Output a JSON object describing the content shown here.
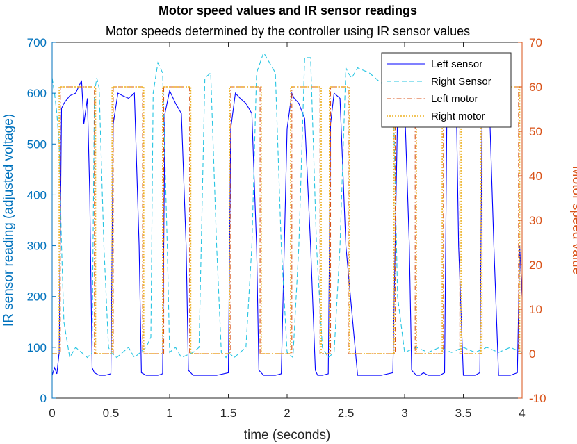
{
  "chart_data": {
    "type": "line",
    "title": "Motor speed values and IR sensor readings",
    "subtitle": "Motor speeds determined by the controller using IR sensor values",
    "xlabel": "time (seconds)",
    "ylabel_left": "IR sensor reading (adjusted voltage)",
    "ylabel_right": "Motor speed value",
    "xlim": [
      0,
      4
    ],
    "ylim_left": [
      0,
      700
    ],
    "ylim_right": [
      -10,
      70
    ],
    "x_ticks": [
      "0",
      "0.5",
      "1",
      "1.5",
      "2",
      "2.5",
      "3",
      "3.5",
      "4"
    ],
    "y_left_ticks": [
      "0",
      "100",
      "200",
      "300",
      "400",
      "500",
      "600",
      "700"
    ],
    "y_right_ticks": [
      "-10",
      "0",
      "10",
      "20",
      "30",
      "40",
      "50",
      "60",
      "70"
    ],
    "grid": false,
    "legend_position": "top-right",
    "colors": {
      "left_axis": "#0072BD",
      "right_axis": "#D95319",
      "left_sensor": "#0000FF",
      "right_sensor": "#27C5E2",
      "left_motor": "#D95319",
      "right_motor": "#EDB120"
    },
    "series": [
      {
        "name": "Left sensor",
        "axis": "left",
        "style": "solid",
        "x": [
          0,
          0.02,
          0.04,
          0.06,
          0.08,
          0.1,
          0.15,
          0.2,
          0.25,
          0.27,
          0.3,
          0.32,
          0.34,
          0.36,
          0.4,
          0.45,
          0.5,
          0.52,
          0.56,
          0.6,
          0.65,
          0.7,
          0.74,
          0.76,
          0.8,
          0.85,
          0.9,
          0.94,
          0.96,
          1.0,
          1.05,
          1.1,
          1.14,
          1.16,
          1.2,
          1.3,
          1.4,
          1.5,
          1.52,
          1.56,
          1.6,
          1.65,
          1.7,
          1.74,
          1.76,
          1.8,
          1.9,
          1.95,
          2.0,
          2.04,
          2.06,
          2.1,
          2.15,
          2.2,
          2.24,
          2.26,
          2.3,
          2.35,
          2.37,
          2.4,
          2.45,
          2.5,
          2.6,
          2.7,
          2.8,
          2.9,
          2.94,
          2.96,
          3.0,
          3.04,
          3.06,
          3.1,
          3.13,
          3.16,
          3.2,
          3.3,
          3.34,
          3.36,
          3.4,
          3.44,
          3.46,
          3.5,
          3.6,
          3.64,
          3.66,
          3.7,
          3.72,
          3.76,
          3.8,
          3.9,
          3.96,
          3.98,
          4.0
        ],
        "y": [
          45,
          60,
          48,
          90,
          570,
          580,
          595,
          600,
          625,
          540,
          590,
          400,
          60,
          50,
          45,
          45,
          48,
          540,
          600,
          595,
          590,
          600,
          300,
          50,
          45,
          45,
          45,
          48,
          560,
          605,
          580,
          560,
          300,
          55,
          45,
          45,
          45,
          50,
          530,
          600,
          590,
          580,
          560,
          300,
          55,
          45,
          45,
          48,
          530,
          600,
          590,
          580,
          550,
          300,
          55,
          45,
          45,
          48,
          540,
          600,
          590,
          300,
          45,
          45,
          45,
          50,
          560,
          600,
          580,
          300,
          55,
          45,
          45,
          50,
          45,
          45,
          50,
          560,
          600,
          580,
          300,
          45,
          45,
          50,
          560,
          600,
          590,
          300,
          45,
          45,
          50,
          300,
          200
        ]
      },
      {
        "name": "Right Sensor",
        "axis": "left",
        "style": "dashed",
        "x": [
          0,
          0.02,
          0.04,
          0.06,
          0.08,
          0.1,
          0.15,
          0.2,
          0.25,
          0.3,
          0.34,
          0.36,
          0.38,
          0.4,
          0.44,
          0.48,
          0.5,
          0.55,
          0.6,
          0.65,
          0.7,
          0.75,
          0.8,
          0.84,
          0.86,
          0.9,
          0.94,
          0.98,
          1.0,
          1.05,
          1.1,
          1.2,
          1.25,
          1.3,
          1.35,
          1.4,
          1.44,
          1.48,
          1.5,
          1.55,
          1.6,
          1.65,
          1.7,
          1.74,
          1.8,
          1.85,
          1.9,
          1.95,
          2.0,
          2.05,
          2.1,
          2.15,
          2.2,
          2.25,
          2.3,
          2.35,
          2.4,
          2.45,
          2.5,
          2.52,
          2.55,
          2.6,
          2.7,
          2.8,
          2.9,
          2.94,
          3.0,
          3.1,
          3.2,
          3.3,
          3.4,
          3.5,
          3.6,
          3.7,
          3.8,
          3.9,
          4.0
        ],
        "y": [
          630,
          600,
          560,
          500,
          300,
          150,
          80,
          100,
          90,
          80,
          90,
          600,
          630,
          610,
          300,
          100,
          90,
          80,
          90,
          100,
          80,
          90,
          100,
          120,
          600,
          660,
          640,
          300,
          90,
          100,
          80,
          90,
          100,
          630,
          640,
          300,
          90,
          80,
          90,
          80,
          90,
          100,
          300,
          640,
          680,
          660,
          640,
          300,
          90,
          80,
          300,
          670,
          670,
          300,
          100,
          80,
          90,
          300,
          650,
          640,
          630,
          650,
          640,
          620,
          640,
          200,
          90,
          100,
          90,
          100,
          90,
          100,
          90,
          100,
          90,
          100,
          90
        ]
      },
      {
        "name": "Left motor",
        "axis": "right",
        "style": "dash-dot",
        "x": [
          0,
          0.07,
          0.07,
          0.36,
          0.36,
          0.52,
          0.52,
          0.77,
          0.77,
          0.95,
          0.95,
          1.17,
          1.17,
          1.52,
          1.52,
          1.77,
          1.77,
          2.04,
          2.04,
          2.28,
          2.28,
          2.37,
          2.37,
          2.52,
          2.52,
          2.92,
          2.92,
          3.09,
          3.09,
          3.33,
          3.33,
          3.47,
          3.47,
          3.66,
          3.66,
          3.97,
          3.97,
          4.0
        ],
        "y": [
          0,
          0,
          60,
          60,
          0,
          0,
          60,
          60,
          0,
          0,
          60,
          60,
          0,
          0,
          60,
          60,
          0,
          0,
          60,
          60,
          0,
          0,
          60,
          60,
          0,
          0,
          60,
          60,
          0,
          0,
          60,
          60,
          0,
          0,
          60,
          60,
          0,
          0
        ]
      },
      {
        "name": "Right motor",
        "axis": "right",
        "style": "dotted",
        "x": [
          0,
          0.06,
          0.06,
          0.37,
          0.37,
          0.51,
          0.51,
          0.78,
          0.78,
          0.94,
          0.94,
          1.18,
          1.18,
          1.51,
          1.51,
          1.78,
          1.78,
          2.03,
          2.03,
          2.29,
          2.29,
          2.36,
          2.36,
          2.53,
          2.53,
          2.91,
          2.91,
          3.1,
          3.1,
          3.32,
          3.32,
          3.48,
          3.48,
          3.65,
          3.65,
          3.98,
          3.98,
          4.0
        ],
        "y": [
          0,
          0,
          60,
          60,
          0,
          0,
          60,
          60,
          0,
          0,
          60,
          60,
          0,
          0,
          60,
          60,
          0,
          0,
          60,
          60,
          0,
          0,
          60,
          60,
          0,
          0,
          60,
          60,
          0,
          0,
          60,
          60,
          0,
          0,
          60,
          60,
          0,
          0
        ]
      }
    ]
  }
}
